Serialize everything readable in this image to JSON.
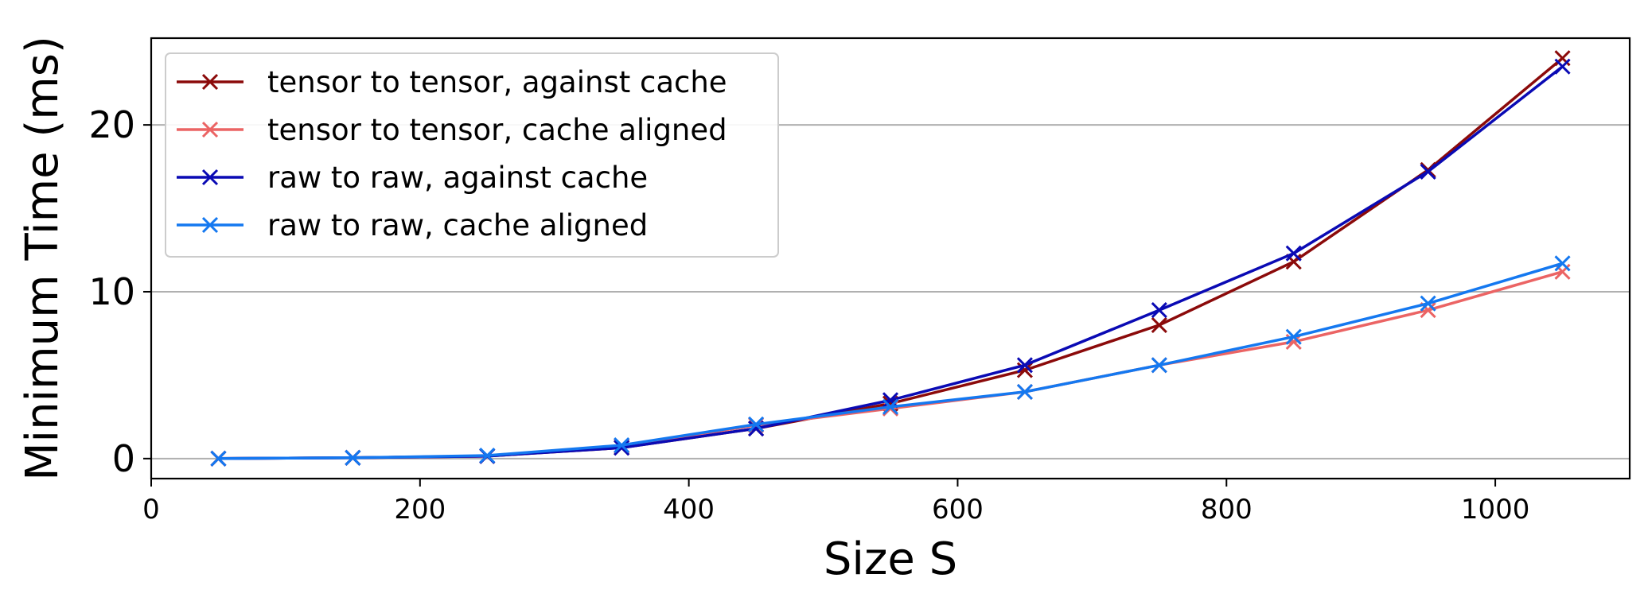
{
  "chart_data": {
    "type": "line",
    "title": "",
    "xlabel": "Size S",
    "ylabel": "Minimum Time (ms)",
    "xlim": [
      0,
      1100
    ],
    "ylim": [
      -1.2,
      25.2
    ],
    "xticks": [
      0,
      200,
      400,
      600,
      800,
      1000
    ],
    "yticks": [
      0,
      10,
      20
    ],
    "grid": "horizontal",
    "legend_position": "top-left",
    "marker": "x",
    "x": [
      50,
      150,
      250,
      350,
      450,
      550,
      650,
      750,
      850,
      950,
      1050
    ],
    "series": [
      {
        "name": "tensor to tensor, against cache",
        "color": "#8b0a0a",
        "values": [
          0.0,
          0.05,
          0.15,
          0.65,
          1.8,
          3.3,
          5.3,
          8.0,
          11.8,
          17.3,
          24.0
        ]
      },
      {
        "name": "tensor to tensor, cache aligned",
        "color": "#eb6464",
        "values": [
          0.0,
          0.05,
          0.15,
          0.75,
          2.0,
          3.0,
          4.0,
          5.6,
          7.0,
          8.9,
          11.2
        ]
      },
      {
        "name": "raw to raw, against cache",
        "color": "#0a0ab4",
        "values": [
          0.0,
          0.05,
          0.15,
          0.65,
          1.8,
          3.5,
          5.6,
          8.9,
          12.3,
          17.2,
          23.5
        ]
      },
      {
        "name": "raw to raw, cache aligned",
        "color": "#1478f0",
        "values": [
          0.0,
          0.05,
          0.18,
          0.8,
          2.05,
          3.1,
          4.0,
          5.6,
          7.3,
          9.3,
          11.7
        ]
      }
    ]
  }
}
